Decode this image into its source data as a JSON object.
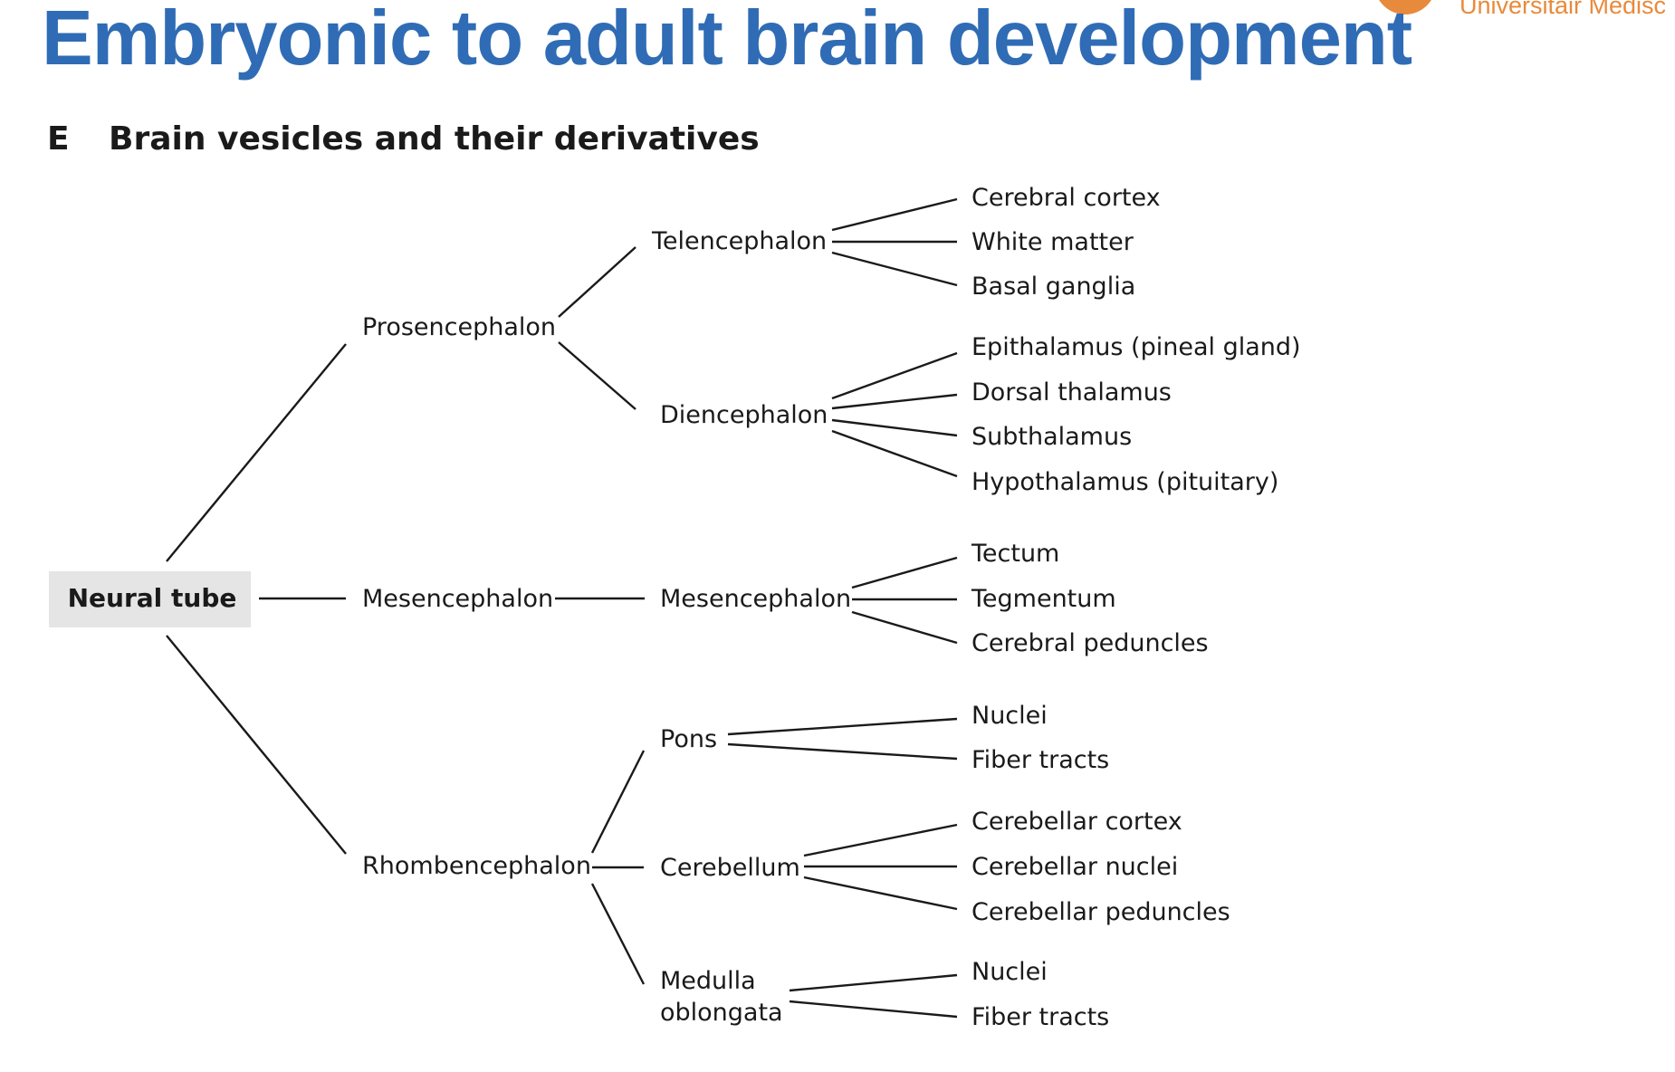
{
  "slide": {
    "title": "Embryonic to adult brain development",
    "institution": "Universitair Medisc"
  },
  "figure": {
    "letter": "E",
    "heading": "Brain vesicles and their derivatives",
    "root": "Neural tube",
    "primary": {
      "prosencephalon": "Prosencephalon",
      "mesencephalon": "Mesencephalon",
      "rhombencephalon": "Rhombencephalon"
    },
    "secondary": {
      "telencephalon": "Telencephalon",
      "diencephalon": "Diencephalon",
      "mesencephalon": "Mesencephalon",
      "pons": "Pons",
      "cerebellum": "Cerebellum",
      "medulla_line1": "Medulla",
      "medulla_line2": "oblongata"
    },
    "derivatives": {
      "telencephalon": [
        "Cerebral cortex",
        "White matter",
        "Basal ganglia"
      ],
      "diencephalon": [
        "Epithalamus (pineal gland)",
        "Dorsal thalamus",
        "Subthalamus",
        "Hypothalamus (pituitary)"
      ],
      "mesencephalon": [
        "Tectum",
        "Tegmentum",
        "Cerebral peduncles"
      ],
      "pons": [
        "Nuclei",
        "Fiber tracts"
      ],
      "cerebellum": [
        "Cerebellar cortex",
        "Cerebellar nuclei",
        "Cerebellar peduncles"
      ],
      "medulla": [
        "Nuclei",
        "Fiber tracts"
      ]
    },
    "colors": {
      "title": "#2f6cb5",
      "root_box": "#e5e5e5",
      "lines": "#1a1a1a",
      "logo": "#e88a3b"
    }
  }
}
